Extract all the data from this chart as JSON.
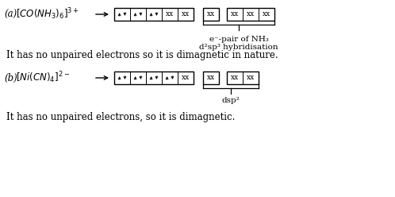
{
  "bg_color": "#ffffff",
  "font_size": 8.5,
  "small_font": 7.5,
  "annot_a": "e⁻-pair of NH₃\nd²sp³ hybridisation",
  "annot_b": "dsp²",
  "text_a": "It has no unpaired electrons so it is dimagnetic in nature.",
  "text_b": "It has no unpaired electrons, so it is dimagnetic."
}
